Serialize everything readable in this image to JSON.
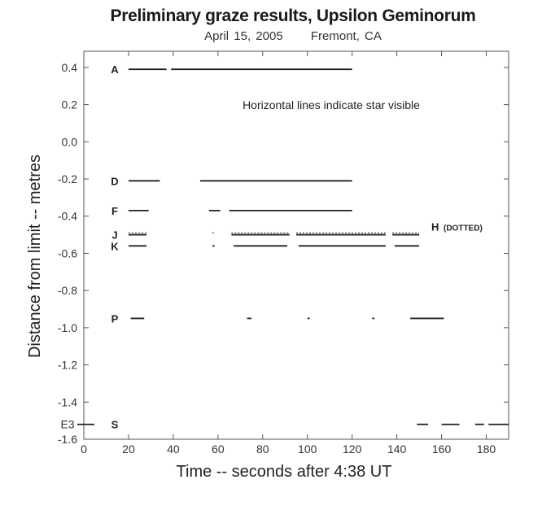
{
  "chart_data": {
    "type": "line",
    "title": "Preliminary graze results, Upsilon Geminorum",
    "subtitle_date": "April 15, 2005",
    "subtitle_place": "Fremont, CA",
    "xlabel": "Time -- seconds after 4:38 UT",
    "ylabel": "Distance from limit -- metres",
    "xlim": [
      0,
      190
    ],
    "ylim": [
      -1.6,
      0.45
    ],
    "x_ticks": [
      0,
      20,
      40,
      60,
      80,
      100,
      120,
      140,
      160,
      180
    ],
    "y_ticks": [
      0.4,
      0.2,
      0.0,
      -0.2,
      -0.4,
      -0.6,
      -0.8,
      -1.0,
      -1.2,
      -1.4,
      -1.6
    ],
    "y_tick_labels": [
      "0.4",
      "0.2",
      "0.0",
      "-0.2",
      "-0.4",
      "-0.6",
      "-0.8",
      "-1.0",
      "-1.2",
      "-1.4",
      "-1.6"
    ],
    "annotation": "Horizontal lines indicate star visible",
    "series": [
      {
        "name": "A",
        "y": 0.39,
        "color": "#222222",
        "dotted": false,
        "segments": [
          [
            20,
            37
          ],
          [
            39,
            120
          ]
        ]
      },
      {
        "name": "D",
        "y": -0.21,
        "color": "#222222",
        "dotted": false,
        "segments": [
          [
            20,
            34
          ],
          [
            52,
            120
          ]
        ]
      },
      {
        "name": "F",
        "y": -0.37,
        "color": "#222222",
        "dotted": false,
        "segments": [
          [
            20,
            29
          ],
          [
            56,
            61
          ],
          [
            65,
            120
          ]
        ]
      },
      {
        "name": "H",
        "y": -0.49,
        "color": "#777777",
        "dotted": true,
        "label": "H",
        "label_note": "(DOTTED)",
        "segments": [
          [
            20,
            28
          ],
          [
            57.5,
            58.5
          ],
          [
            66,
            92
          ],
          [
            95,
            135
          ],
          [
            138,
            150
          ]
        ]
      },
      {
        "name": "J",
        "y": -0.5,
        "color": "#222222",
        "dotted": false,
        "segments": [
          [
            20,
            28
          ],
          [
            66,
            92
          ],
          [
            95,
            135
          ],
          [
            138,
            150
          ]
        ]
      },
      {
        "name": "K",
        "y": -0.56,
        "color": "#222222",
        "dotted": false,
        "segments": [
          [
            20,
            28
          ],
          [
            57.5,
            58.5
          ],
          [
            67,
            91
          ],
          [
            96,
            135
          ],
          [
            139,
            150
          ]
        ]
      },
      {
        "name": "P",
        "y": -0.95,
        "color": "#222222",
        "dotted": false,
        "segments": [
          [
            21,
            27
          ],
          [
            73,
            75
          ],
          [
            100,
            101
          ],
          [
            129,
            130
          ],
          [
            146,
            161
          ]
        ]
      },
      {
        "name": "S",
        "label_extra": "E3",
        "y": -1.52,
        "color": "#222222",
        "dotted": false,
        "segments": [
          [
            149,
            154
          ],
          [
            160,
            168
          ],
          [
            175,
            179
          ],
          [
            181,
            190
          ]
        ]
      }
    ]
  }
}
